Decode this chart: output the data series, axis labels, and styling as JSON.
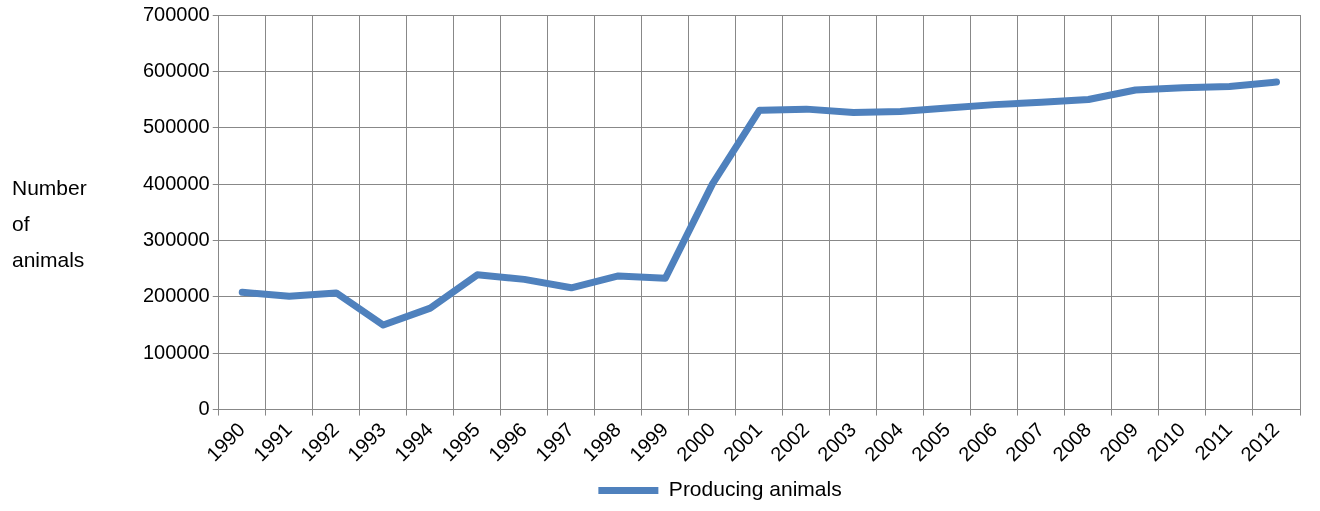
{
  "chart_data": {
    "type": "line",
    "ylabel": "Number of animals",
    "categories": [
      "1990",
      "1991",
      "1992",
      "1993",
      "1994",
      "1995",
      "1996",
      "1997",
      "1998",
      "1999",
      "2000",
      "2001",
      "2002",
      "2003",
      "2004",
      "2005",
      "2006",
      "2007",
      "2008",
      "2009",
      "2010",
      "2011",
      "2012"
    ],
    "series": [
      {
        "name": "Producing animals",
        "color": "#4f81bd",
        "values": [
          208000,
          201000,
          207000,
          150000,
          180000,
          239000,
          231000,
          216000,
          237000,
          233000,
          400000,
          531000,
          533000,
          527000,
          529000,
          535000,
          541000,
          545000,
          550000,
          567000,
          571000,
          573000,
          581000
        ]
      }
    ],
    "ylim": [
      0,
      700000
    ],
    "yticks": [
      0,
      100000,
      200000,
      300000,
      400000,
      500000,
      600000,
      700000
    ],
    "grid": true,
    "legend": "bottom",
    "marker": "none",
    "line_style": "solid"
  }
}
